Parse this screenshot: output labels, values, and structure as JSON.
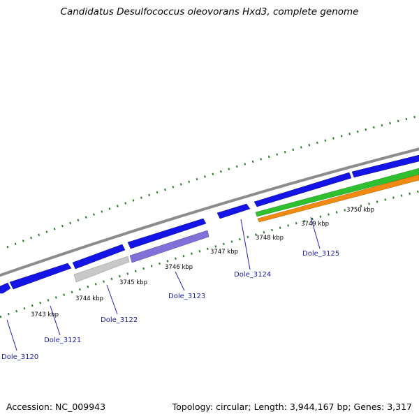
{
  "title": "Candidatus Desulfococcus oleovorans Hxd3, complete genome",
  "accession": "Accession: NC_009943",
  "topology": "Topology: circular; Length: 3,944,167 bp; Genes: 3,317",
  "colors": {
    "forward_cds": "#1414e6",
    "reverse_cds_grey": "#c8c8c8",
    "reverse_cds_purple": "#8070d8",
    "green_feature": "#2fc02f",
    "orange_feature": "#f08a10",
    "backbone": "#8c8c8c",
    "tick": "#2a7a2a",
    "label": "#1a1aa6"
  },
  "scale_labels": [
    "3743 kbp",
    "3744 kbp",
    "3745 kbp",
    "3746 kbp",
    "3747 kbp",
    "3748 kbp",
    "3749 kbp",
    "3750 kbp"
  ],
  "gene_labels": [
    "Dole_3120",
    "Dole_3121",
    "Dole_3122",
    "Dole_3123",
    "Dole_3124",
    "Dole_3125"
  ]
}
